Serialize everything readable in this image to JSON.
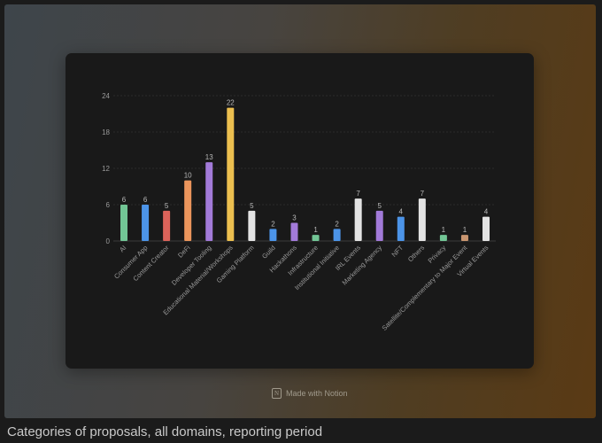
{
  "chart_data": {
    "type": "bar",
    "title": "",
    "xlabel": "",
    "ylabel": "",
    "ylim": [
      0,
      24
    ],
    "yticks": [
      0,
      6,
      12,
      18,
      24
    ],
    "grid": true,
    "categories": [
      "AI",
      "Consumer App",
      "Content Creator",
      "DeFi",
      "Developer Tooling",
      "Educational Material/Workshops",
      "Gaming Platform",
      "Guild",
      "Hackathons",
      "Infrastructure",
      "Institutional Initiative",
      "IRL Events",
      "Marketing Agency",
      "NFT",
      "Others",
      "Privacy",
      "Satellite/Complementary to Major Event",
      "Virtual Events"
    ],
    "values": [
      6,
      6,
      5,
      10,
      13,
      22,
      5,
      2,
      3,
      1,
      2,
      7,
      5,
      4,
      7,
      1,
      1,
      4
    ],
    "colors": [
      "#72c595",
      "#4c94e8",
      "#db635a",
      "#eb955c",
      "#a27ad9",
      "#ecbf4f",
      "#e3e3e3",
      "#4c94e8",
      "#a27ad9",
      "#72c595",
      "#4c94e8",
      "#e3e3e3",
      "#a27ad9",
      "#4c94e8",
      "#e3e3e3",
      "#72c595",
      "#c99570",
      "#e3e3e3"
    ]
  },
  "footer": {
    "badge": "Made with Notion",
    "logo_letter": "N"
  },
  "caption": "Categories of proposals, all domains, reporting period"
}
